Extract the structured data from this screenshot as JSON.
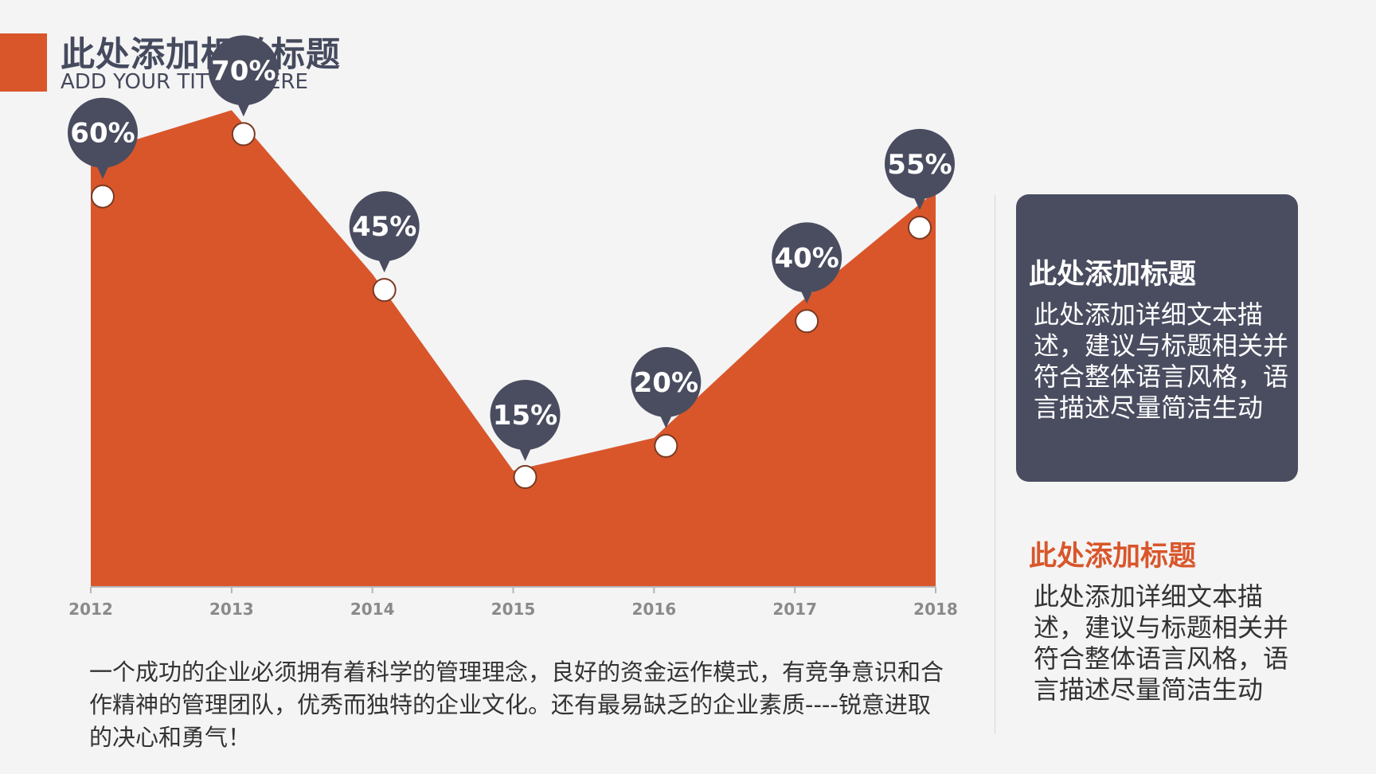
{
  "header": {
    "title": "此处添加相关标题",
    "subtitle": "ADD YOUR TITTLE HERE"
  },
  "colors": {
    "accent": "#d9562b",
    "dark": "#4a4d60",
    "background": "#f4f4f4"
  },
  "chart_data": {
    "type": "area",
    "x": [
      "2012",
      "2013",
      "2014",
      "2015",
      "2016",
      "2017",
      "2018"
    ],
    "values": [
      60,
      70,
      45,
      15,
      20,
      40,
      55
    ],
    "labels": [
      "60%",
      "70%",
      "45%",
      "15%",
      "20%",
      "40%",
      "55%"
    ],
    "grid": false,
    "legend": "none"
  },
  "description": "一个成功的企业必须拥有着科学的管理理念，良好的资金运作模式，有竞争意识和合作精神的管理团队，优秀而独特的企业文化。还有最易缺乏的企业素质----锐意进取的决心和勇气！",
  "cards": [
    {
      "title": "此处添加标题",
      "body": "此处添加详细文本描述，建议与标题相关并符合整体语言风格，语言描述尽量简洁生动"
    },
    {
      "title": "此处添加标题",
      "body": "此处添加详细文本描述，建议与标题相关并符合整体语言风格，语言描述尽量简洁生动"
    }
  ]
}
